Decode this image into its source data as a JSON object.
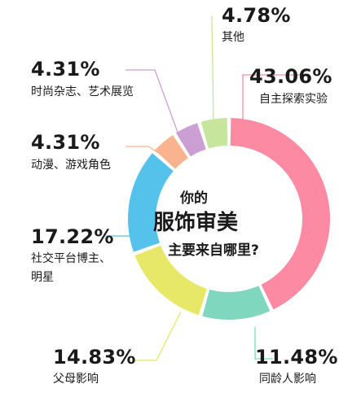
{
  "chart_data": {
    "type": "pie",
    "donut": true,
    "center_title": [
      "你的",
      "服饰审美",
      "主要来自哪里?"
    ],
    "slices": [
      {
        "label": "自主探索实验",
        "value": 43.06,
        "value_text": "43.06%",
        "color": "#fb8aa2"
      },
      {
        "label": "同龄人影响",
        "value": 11.48,
        "value_text": "11.48%",
        "color": "#7fd8be"
      },
      {
        "label": "父母影响",
        "value": 14.83,
        "value_text": "14.83%",
        "color": "#e7e867"
      },
      {
        "label": "社交平台博主、明星",
        "label_lines": [
          "社交平台博主、",
          "明星"
        ],
        "value": 17.22,
        "value_text": "17.22%",
        "color": "#55c2ec"
      },
      {
        "label": "动漫、游戏角色",
        "value": 4.31,
        "value_text": "4.31%",
        "color": "#f9b48f"
      },
      {
        "label": "时尚杂志、艺术展览",
        "value": 4.31,
        "value_text": "4.31%",
        "color": "#cb9fd4"
      },
      {
        "label": "其他",
        "value": 4.78,
        "value_text": "4.78%",
        "color": "#c7e59d"
      }
    ]
  }
}
